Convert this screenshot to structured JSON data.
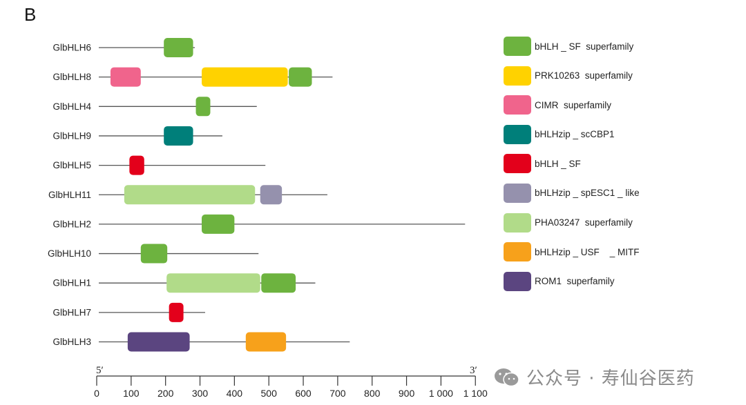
{
  "panel_label": "B",
  "chart_data": {
    "type": "gene-structure",
    "unit": "aa",
    "axis": {
      "min": 0,
      "max": 1100,
      "ticks": [
        "0",
        "100",
        "200",
        "300",
        "400",
        "500",
        "600",
        "700",
        "800",
        "900",
        "1 000",
        "1 100"
      ],
      "tick_values": [
        0,
        100,
        200,
        300,
        400,
        500,
        600,
        700,
        800,
        900,
        1000,
        1100
      ],
      "left_end_label": "5′",
      "right_end_label": "3′"
    },
    "domain_types": [
      {
        "id": "bhlh_sf_superfamily",
        "label": "bHLH _ SF  superfamily",
        "color": "#6db33f"
      },
      {
        "id": "prk10263",
        "label": "PRK10263  superfamily",
        "color": "#ffd200"
      },
      {
        "id": "cimr",
        "label": "CIMR  superfamily",
        "color": "#f0648c"
      },
      {
        "id": "bhlhzip_sccbp1",
        "label": "bHLHzip _ scCBP1",
        "color": "#007f7a"
      },
      {
        "id": "bhlh_sf",
        "label": "bHLH _ SF",
        "color": "#e3001b"
      },
      {
        "id": "bhlhzip_spesc1",
        "label": "bHLHzip _ spESC1 _ like",
        "color": "#9591ad"
      },
      {
        "id": "pha03247",
        "label": "PHA03247  superfamily",
        "color": "#b1db89"
      },
      {
        "id": "bhlhzip_usf_mitf",
        "label": "bHLHzip _ USF    _ MITF",
        "color": "#f7a11b"
      },
      {
        "id": "rom1",
        "label": "ROM1  superfamily",
        "color": "#5b4580"
      }
    ],
    "genes": [
      {
        "name": "GlbHLH6",
        "length": 285,
        "domains": [
          {
            "type": "bhlh_sf_superfamily",
            "start": 195,
            "end": 280
          }
        ]
      },
      {
        "name": "GlbHLH8",
        "length": 685,
        "domains": [
          {
            "type": "cimr",
            "start": 40,
            "end": 128
          },
          {
            "type": "prk10263",
            "start": 305,
            "end": 555
          },
          {
            "type": "bhlh_sf_superfamily",
            "start": 558,
            "end": 625
          }
        ]
      },
      {
        "name": "GlbHLH4",
        "length": 465,
        "domains": [
          {
            "type": "bhlh_sf_superfamily",
            "start": 288,
            "end": 330
          }
        ]
      },
      {
        "name": "GlbHLH9",
        "length": 365,
        "domains": [
          {
            "type": "bhlhzip_sccbp1",
            "start": 195,
            "end": 280
          }
        ]
      },
      {
        "name": "GlbHLH5",
        "length": 490,
        "domains": [
          {
            "type": "bhlh_sf",
            "start": 95,
            "end": 138
          }
        ]
      },
      {
        "name": "GlbHLH11",
        "length": 670,
        "domains": [
          {
            "type": "pha03247",
            "start": 80,
            "end": 460
          },
          {
            "type": "bhlhzip_spesc1",
            "start": 475,
            "end": 538
          }
        ]
      },
      {
        "name": "GlbHLH2",
        "length": 1070,
        "domains": [
          {
            "type": "bhlh_sf_superfamily",
            "start": 305,
            "end": 400
          }
        ]
      },
      {
        "name": "GlbHLH10",
        "length": 470,
        "domains": [
          {
            "type": "bhlh_sf_superfamily",
            "start": 128,
            "end": 205
          }
        ]
      },
      {
        "name": "GlbHLH1",
        "length": 635,
        "domains": [
          {
            "type": "pha03247",
            "start": 203,
            "end": 475
          },
          {
            "type": "bhlh_sf_superfamily",
            "start": 478,
            "end": 578
          }
        ]
      },
      {
        "name": "GlbHLH7",
        "length": 315,
        "domains": [
          {
            "type": "bhlh_sf",
            "start": 210,
            "end": 252
          }
        ]
      },
      {
        "name": "GlbHLH3",
        "length": 735,
        "domains": [
          {
            "type": "rom1",
            "start": 90,
            "end": 270
          },
          {
            "type": "bhlhzip_usf_mitf",
            "start": 433,
            "end": 550
          }
        ]
      }
    ]
  },
  "watermark": {
    "text": "公众号 · 寿仙谷医药",
    "icon": "wechat-icon"
  }
}
